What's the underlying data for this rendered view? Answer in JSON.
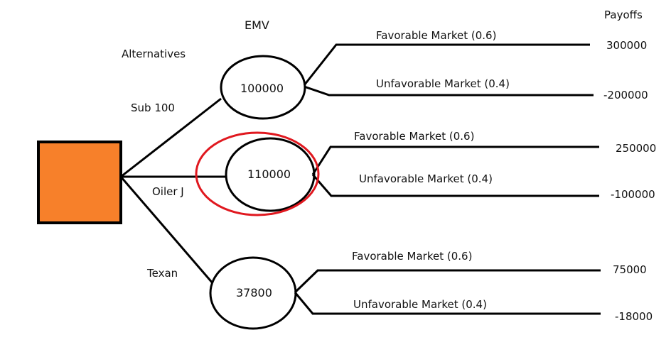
{
  "header": {
    "emv_label": "EMV",
    "payoffs_label": "Payoffs",
    "alternatives_label": "Alternatives"
  },
  "decision_node": {
    "color": "#f7802a"
  },
  "highlight_color": "#e0181f",
  "alternatives": [
    {
      "name": "Sub 100",
      "emv": "100000",
      "outcomes": [
        {
          "label": "Favorable Market (0.6)",
          "payoff": "300000"
        },
        {
          "label": "Unfavorable Market (0.4)",
          "payoff": "-200000"
        }
      ]
    },
    {
      "name": "Oiler J",
      "emv": "110000",
      "highlighted": true,
      "outcomes": [
        {
          "label": "Favorable Market (0.6)",
          "payoff": "250000"
        },
        {
          "label": "Unfavorable Market (0.4)",
          "payoff": "-100000"
        }
      ]
    },
    {
      "name": "Texan",
      "emv": "37800",
      "outcomes": [
        {
          "label": "Favorable Market (0.6)",
          "payoff": "75000"
        },
        {
          "label": "Unfavorable Market (0.4)",
          "payoff": "-18000"
        }
      ]
    }
  ]
}
